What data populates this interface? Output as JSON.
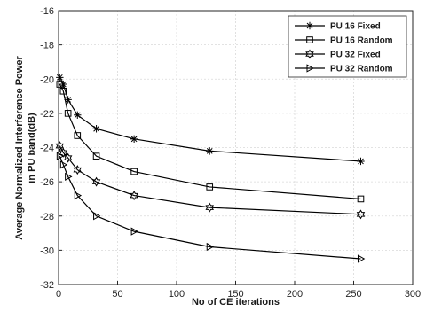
{
  "chart_data": {
    "type": "line",
    "xlabel": "No of CE iterations",
    "ylabel_lines": [
      "Average Normalized Interference Power",
      "in PU band(dB)"
    ],
    "xlim": [
      0,
      300
    ],
    "ylim": [
      -32,
      -16
    ],
    "xticks": [
      0,
      50,
      100,
      150,
      200,
      250,
      300
    ],
    "yticks": [
      -32,
      -30,
      -28,
      -26,
      -24,
      -22,
      -20,
      -18,
      -16
    ],
    "grid": true,
    "legend_position": "top-right",
    "x": [
      1,
      4,
      8,
      16,
      32,
      64,
      128,
      256
    ],
    "series": [
      {
        "name": "PU 16 Fixed",
        "marker": "asterisk",
        "values": [
          -19.9,
          -20.3,
          -21.2,
          -22.1,
          -22.9,
          -23.5,
          -24.2,
          -24.8
        ]
      },
      {
        "name": "PU 16 Random",
        "marker": "square",
        "values": [
          -20.3,
          -20.7,
          -22.0,
          -23.3,
          -24.5,
          -25.4,
          -26.3,
          -27.0
        ]
      },
      {
        "name": "PU 32  Fixed",
        "marker": "hexagram",
        "values": [
          -23.9,
          -24.3,
          -24.6,
          -25.3,
          -26.0,
          -26.8,
          -27.5,
          -27.9
        ]
      },
      {
        "name": "PU 32 Random",
        "marker": "triangle-right",
        "values": [
          -24.5,
          -25.0,
          -25.7,
          -26.8,
          -28.0,
          -28.9,
          -29.8,
          -30.5
        ]
      }
    ]
  }
}
